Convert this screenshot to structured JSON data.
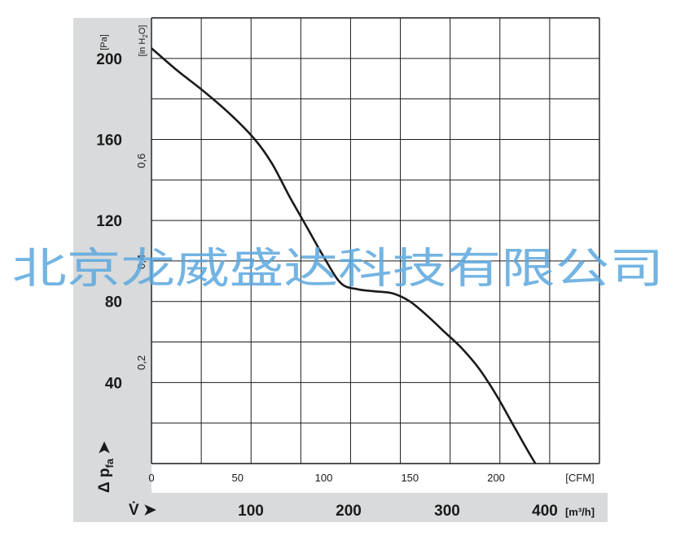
{
  "chart_data": {
    "type": "line",
    "x_axis_bottom": {
      "unit": "[CFM]",
      "ticks": [
        "0",
        "50",
        "100",
        "150",
        "200"
      ],
      "range": [
        0,
        260
      ]
    },
    "x_axis_secondary": {
      "symbol": "V̇ ➤",
      "unit": "[m³/h]",
      "ticks": [
        "100",
        "200",
        "300",
        "400"
      ]
    },
    "y_axis_left": {
      "unit": "[Pa]",
      "symbol": "Δ p",
      "subscript": "fa",
      "arrow": "➤",
      "ticks": [
        "40",
        "80",
        "120",
        "160",
        "200"
      ],
      "range": [
        0,
        220
      ]
    },
    "y_axis_inner": {
      "unit_main": "[in H",
      "unit_sub": "2",
      "unit_end": "O]",
      "ticks": [
        "0,2",
        "0,4",
        "0,6"
      ]
    },
    "series": [
      {
        "x": [
          0,
          15,
          30,
          45,
          60,
          70,
          80,
          90,
          100,
          110,
          120,
          130,
          140,
          150,
          160,
          170,
          180,
          190,
          200,
          210,
          220,
          230
        ],
        "y": [
          205,
          194,
          184,
          173,
          160,
          148,
          132,
          117,
          102,
          89,
          86,
          85,
          84,
          80,
          73,
          65,
          57,
          47,
          34,
          19,
          4,
          -10
        ]
      }
    ],
    "grid": true,
    "line_color": "#1a1a1a"
  },
  "watermark": "北京龙威盛达科技有限公司"
}
